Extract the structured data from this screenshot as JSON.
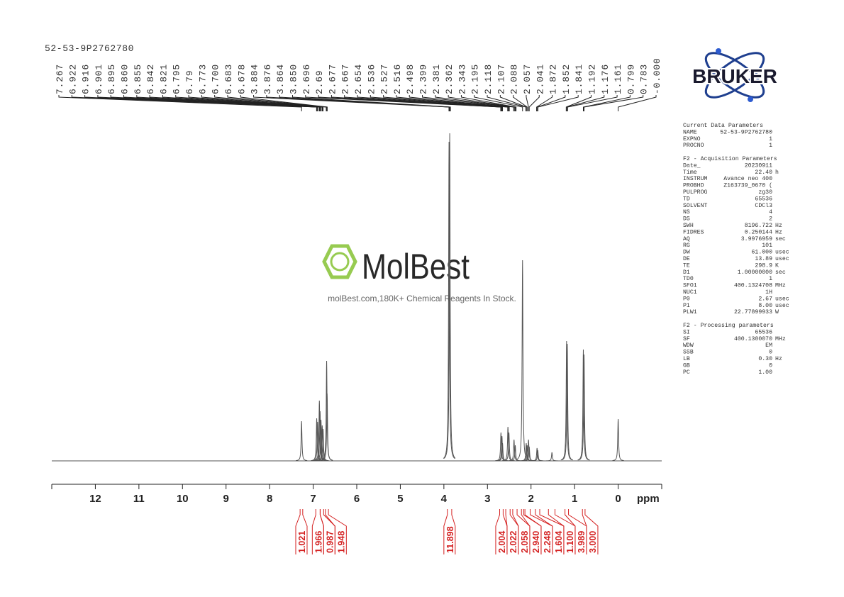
{
  "chart_data": {
    "type": "nmr",
    "title": "52-53-9P2762780",
    "x_label": "ppm",
    "xlim": [
      13,
      -1
    ],
    "xticks": [
      12,
      11,
      10,
      9,
      8,
      7,
      6,
      5,
      4,
      3,
      2,
      1,
      0
    ],
    "line_color": "#555555",
    "integral_color": "#d42020",
    "peak_labels": [
      7.267,
      6.922,
      6.916,
      6.901,
      6.895,
      {
        "value": 6.86,
        "label": "6.860"
      },
      6.855,
      6.842,
      6.821,
      6.795,
      6.79,
      6.773,
      {
        "value": 6.7,
        "label": "6.700"
      },
      6.683,
      6.678,
      3.884,
      3.876,
      3.864,
      {
        "value": 3.85,
        "label": "3.850"
      },
      2.696,
      2.69,
      2.677,
      2.667,
      2.654,
      2.536,
      2.527,
      2.516,
      2.498,
      2.399,
      2.381,
      2.362,
      2.343,
      2.195,
      2.118,
      2.107,
      2.088,
      2.057,
      2.041,
      1.872,
      1.852,
      1.841,
      1.192,
      1.176,
      1.161,
      0.799,
      0.783,
      {
        "value": 0,
        "label": "-0.000"
      }
    ],
    "spectrum": {
      "x": [
        7.267,
        6.919,
        6.898,
        6.858,
        6.842,
        6.821,
        6.793,
        6.773,
        6.691,
        6.68,
        3.882,
        3.866,
        2.69,
        2.667,
        2.654,
        2.53,
        2.507,
        2.39,
        2.362,
        2.195,
        2.11,
        2.09,
        2.057,
        2.041,
        1.862,
        1.845,
        1.52,
        1.184,
        1.168,
        0.799,
        0.783,
        0
      ],
      "values": [
        56,
        60,
        55,
        85,
        70,
        58,
        50,
        45,
        141,
        95,
        450,
        462,
        40,
        35,
        25,
        48,
        40,
        30,
        22,
        283,
        25,
        22,
        30,
        20,
        18,
        15,
        12,
        169,
        165,
        157,
        150,
        59
      ]
    },
    "integrals": [
      {
        "range": [
          7.3,
          7.24
        ],
        "value": 1.021
      },
      {
        "range": [
          6.94,
          6.84
        ],
        "value": 1.966
      },
      {
        "range": [
          6.84,
          6.76
        ],
        "value": 0.987
      },
      {
        "range": [
          6.72,
          6.65
        ],
        "value": 1.948
      },
      {
        "range": [
          3.92,
          3.82
        ],
        "value": 11.898
      },
      {
        "range": [
          2.72,
          2.64
        ],
        "value": 2.004
      },
      {
        "range": [
          2.58,
          2.48
        ],
        "value": 2.022
      },
      {
        "range": [
          2.42,
          2.32
        ],
        "value": 2.058
      },
      {
        "range": [
          2.22,
          2.17
        ],
        "value": 2.94,
        "label": "2.940"
      },
      {
        "range": [
          2.14,
          2.02
        ],
        "value": 2.248
      },
      {
        "range": [
          1.9,
          1.8
        ],
        "value": 1.604
      },
      {
        "range": [
          1.6,
          1.45
        ],
        "value": 1.1,
        "label": "1.100"
      },
      {
        "range": [
          1.22,
          1.14
        ],
        "value": 3.989
      },
      {
        "range": [
          0.82,
          0.76
        ],
        "value": 3,
        "label": "3.000"
      }
    ]
  },
  "logo": "BRUKER",
  "watermark": {
    "brand": "MolBest",
    "tagline": "molBest.com,180K+ Chemical Reagents In Stock."
  },
  "parameters": [
    {
      "title": "Current Data Parameters",
      "rows": [
        [
          "NAME",
          "52-53-9P2762780"
        ],
        [
          "EXPNO",
          "1"
        ],
        [
          "PROCNO",
          "1"
        ]
      ]
    },
    {
      "title": "F2 - Acquisition Parameters",
      "rows": [
        [
          "Date_",
          "20230911"
        ],
        [
          "Time",
          "22.40",
          "h"
        ],
        [
          "INSTRUM",
          "Avance neo 400"
        ],
        [
          "PROBHD",
          "Z163739_0670 ("
        ],
        [
          "PULPROG",
          "zg30"
        ],
        [
          "TD",
          "65536"
        ],
        [
          "SOLVENT",
          "CDCl3"
        ],
        [
          "NS",
          "4"
        ],
        [
          "DS",
          "2"
        ],
        [
          "SWH",
          "8196.722",
          "Hz"
        ],
        [
          "FIDRES",
          "0.250144",
          "Hz"
        ],
        [
          "AQ",
          "3.9976959",
          "sec"
        ],
        [
          "RG",
          "101"
        ],
        [
          "DW",
          "61.000",
          "usec"
        ],
        [
          "DE",
          "13.89",
          "usec"
        ],
        [
          "TE",
          "298.9",
          "K"
        ],
        [
          "D1",
          "1.00000000",
          "sec"
        ],
        [
          "TD0",
          "1"
        ],
        [
          "SFO1",
          "400.1324708",
          "MHz"
        ],
        [
          "NUC1",
          "1H"
        ],
        [
          "P0",
          "2.67",
          "usec"
        ],
        [
          "P1",
          "8.00",
          "usec"
        ],
        [
          "PLW1",
          "22.77899933",
          "W"
        ]
      ]
    },
    {
      "title": "F2 - Processing parameters",
      "rows": [
        [
          "SI",
          "65536"
        ],
        [
          "SF",
          "400.1300070",
          "MHz"
        ],
        [
          "WDW",
          "EM"
        ],
        [
          "SSB",
          "0"
        ],
        [
          "LB",
          "0.30",
          "Hz"
        ],
        [
          "GB",
          "0"
        ],
        [
          "PC",
          "1.00"
        ]
      ]
    }
  ]
}
